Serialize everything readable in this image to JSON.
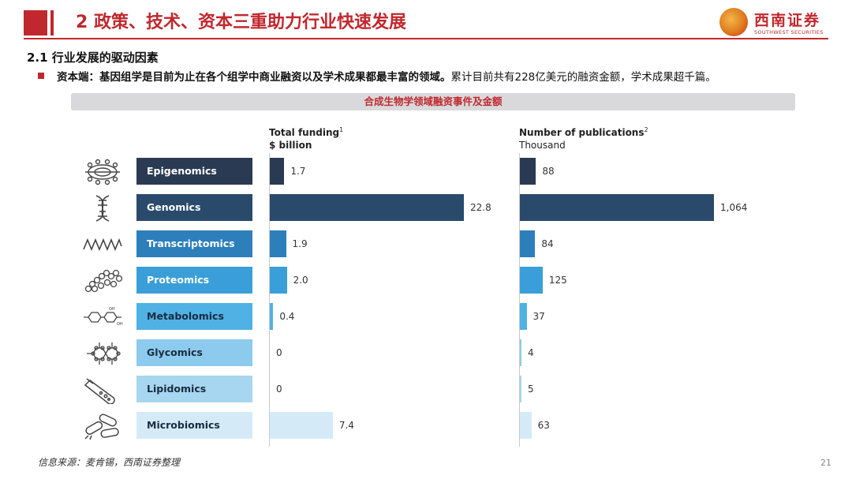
{
  "header": {
    "title": "2 政策、技术、资本三重助力行业快速发展",
    "logo_name": "西南证券",
    "logo_sub": "SOUTHWEST SECURITIES"
  },
  "section": "2.1 行业发展的驱动因素",
  "bullet": {
    "bold": "资本端：基因组学是目前为止在各个组学中商业融资以及学术成果都最丰富的领域。",
    "normal": "累计目前共有228亿美元的融资金额，学术成果超千篇。"
  },
  "banner": "合成生物学领域融资事件及金额",
  "columns": {
    "funding_title": "Total funding",
    "funding_sup": "1",
    "funding_unit": "$ billion",
    "pubs_title": "Number of publications",
    "pubs_sup": "2",
    "pubs_unit": "Thousand"
  },
  "icons": [
    "epigenomics-icon",
    "genomics-dna-icon",
    "transcriptomics-wave-icon",
    "proteomics-chain-icon",
    "metabolomics-molecule-icon",
    "glycomics-molecule-icon",
    "lipidomics-testtube-icon",
    "microbiomics-bacteria-icon"
  ],
  "colors": [
    "#2a3a52",
    "#2a4a6b",
    "#2c7fbb",
    "#3a9fd8",
    "#4fb1e4",
    "#8ccbed",
    "#a6d6f0",
    "#d4ebf7"
  ],
  "chart_data": [
    {
      "type": "bar",
      "orientation": "horizontal",
      "title": "Total funding",
      "unit": "$ billion",
      "categories": [
        "Epigenomics",
        "Genomics",
        "Transcriptomics",
        "Proteomics",
        "Metabolomics",
        "Glycomics",
        "Lipidomics",
        "Microbiomics"
      ],
      "values": [
        1.7,
        22.8,
        1.9,
        2.0,
        0.4,
        0,
        0,
        7.4
      ],
      "labels": [
        "1.7",
        "22.8",
        "1.9",
        "2.0",
        "0.4",
        "0",
        "0",
        "7.4"
      ]
    },
    {
      "type": "bar",
      "orientation": "horizontal",
      "title": "Number of publications",
      "unit": "Thousand",
      "categories": [
        "Epigenomics",
        "Genomics",
        "Transcriptomics",
        "Proteomics",
        "Metabolomics",
        "Glycomics",
        "Lipidomics",
        "Microbiomics"
      ],
      "values": [
        88,
        1064,
        84,
        125,
        37,
        4,
        5,
        63
      ],
      "labels": [
        "88",
        "1,064",
        "84",
        "125",
        "37",
        "4",
        "5",
        "63"
      ]
    }
  ],
  "source": "信息来源：麦肯锡，西南证券整理",
  "page_number": "21"
}
